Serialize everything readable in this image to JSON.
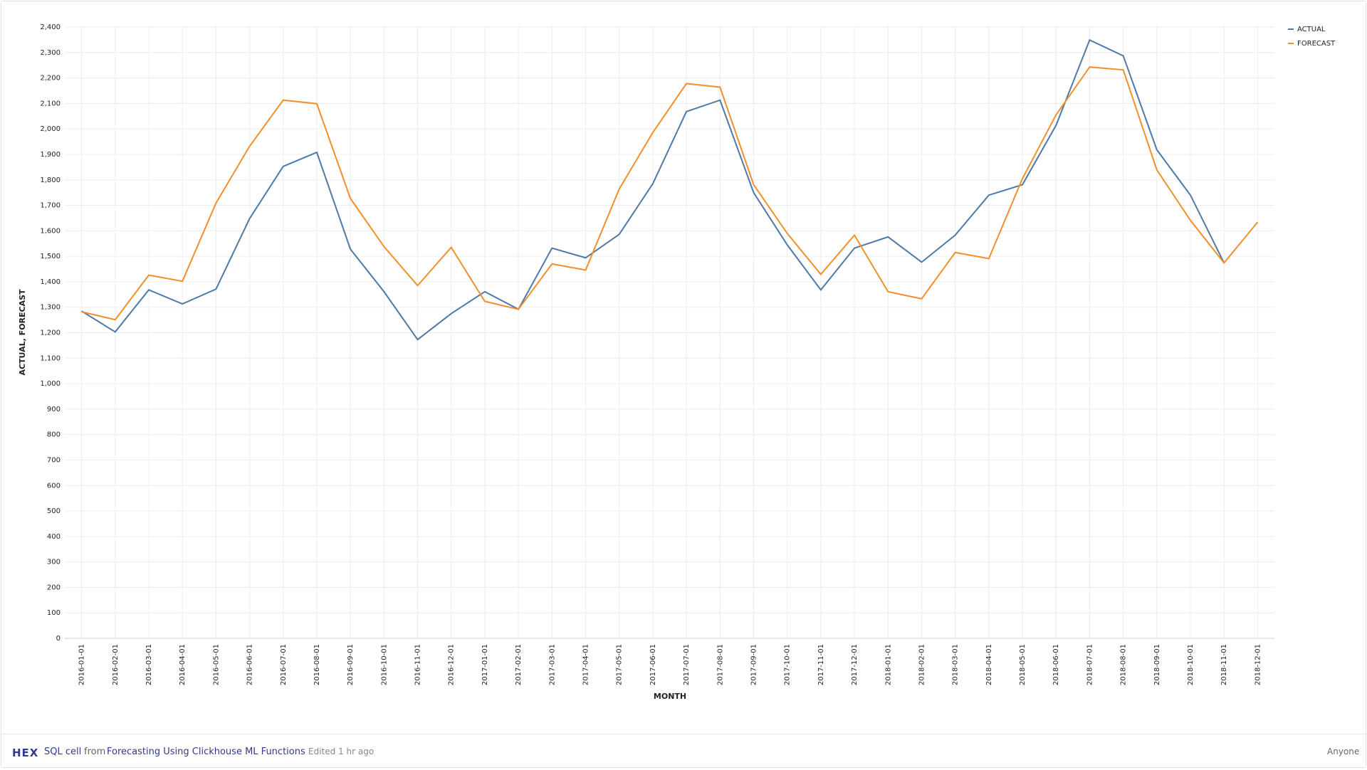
{
  "chart_data": {
    "type": "line",
    "x_label": "MONTH",
    "y_label": "ACTUAL, FORECAST",
    "categories": [
      "2016-01-01",
      "2016-02-01",
      "2016-03-01",
      "2016-04-01",
      "2016-05-01",
      "2016-06-01",
      "2016-07-01",
      "2016-08-01",
      "2016-09-01",
      "2016-10-01",
      "2016-11-01",
      "2016-12-01",
      "2017-01-01",
      "2017-02-01",
      "2017-03-01",
      "2017-04-01",
      "2017-05-01",
      "2017-06-01",
      "2017-07-01",
      "2017-08-01",
      "2017-09-01",
      "2017-10-01",
      "2017-11-01",
      "2017-12-01",
      "2018-01-01",
      "2018-02-01",
      "2018-03-01",
      "2018-04-01",
      "2018-05-01",
      "2018-06-01",
      "2018-07-01",
      "2018-08-01",
      "2018-09-01",
      "2018-10-01",
      "2018-11-01",
      "2018-12-01"
    ],
    "series": [
      {
        "name": "ACTUAL",
        "color": "#4e79a7",
        "values": [
          1285,
          1203,
          1368,
          1313,
          1371,
          1648,
          1853,
          1908,
          1528,
          1361,
          1173,
          1275,
          1361,
          1292,
          1532,
          1494,
          1586,
          1785,
          2068,
          2113,
          1750,
          1545,
          1368,
          1532,
          1576,
          1477,
          1583,
          1740,
          1781,
          2014,
          2349,
          2287,
          1918,
          1740,
          1474,
          null
        ]
      },
      {
        "name": "FORECAST",
        "color": "#f28e2b",
        "values": [
          1282,
          1251,
          1426,
          1402,
          1709,
          1932,
          2113,
          2099,
          1727,
          1538,
          1385,
          1535,
          1323,
          1292,
          1470,
          1446,
          1764,
          1986,
          2178,
          2164,
          1781,
          1590,
          1429,
          1583,
          1361,
          1333,
          1515,
          1491,
          1805,
          2055,
          2243,
          2232,
          1839,
          1641,
          1474,
          1634
        ]
      }
    ],
    "ylim": [
      0,
      2400
    ],
    "yticks": [
      0,
      100,
      200,
      300,
      400,
      500,
      600,
      700,
      800,
      900,
      {
        "value": 1000,
        "label": "1,000"
      },
      {
        "value": 1100,
        "label": "1,100"
      },
      {
        "value": 1200,
        "label": "1,200"
      },
      {
        "value": 1300,
        "label": "1,300"
      },
      {
        "value": 1400,
        "label": "1,400"
      },
      {
        "value": 1500,
        "label": "1,500"
      },
      {
        "value": 1600,
        "label": "1,600"
      },
      {
        "value": 1700,
        "label": "1,700"
      },
      {
        "value": 1800,
        "label": "1,800"
      },
      {
        "value": 1900,
        "label": "1,900"
      },
      {
        "value": 2000,
        "label": "2,000"
      },
      {
        "value": 2100,
        "label": "2,100"
      },
      {
        "value": 2200,
        "label": "2,200"
      },
      {
        "value": 2300,
        "label": "2,300"
      },
      {
        "value": 2400,
        "label": "2,400"
      }
    ],
    "grid": true,
    "legend": "top-right"
  },
  "footer": {
    "logo": "HEX",
    "cell": "SQL cell",
    "from": "from",
    "project": "Forecasting Using Clickhouse ML Functions",
    "edited": "Edited 1 hr ago",
    "share": "Anyone"
  }
}
